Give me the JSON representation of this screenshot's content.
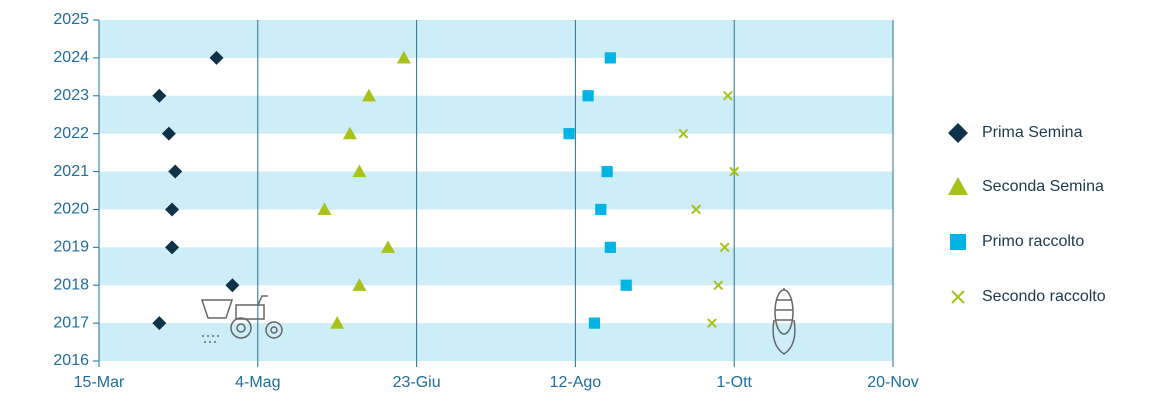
{
  "chart_data": {
    "type": "scatter",
    "xticks": [
      {
        "value": 74,
        "label": "15-Mar"
      },
      {
        "value": 124,
        "label": "4-Mag"
      },
      {
        "value": 174,
        "label": "23-Giu"
      },
      {
        "value": 224,
        "label": "12-Ago"
      },
      {
        "value": 274,
        "label": "1-Ott"
      },
      {
        "value": 324,
        "label": "20-Nov"
      }
    ],
    "xlim": [
      74,
      324
    ],
    "ylim": [
      2016,
      2025
    ],
    "yticks": [
      2016,
      2017,
      2018,
      2019,
      2020,
      2021,
      2022,
      2023,
      2024,
      2025
    ],
    "grid": true,
    "legend": "right",
    "series": [
      {
        "name": "Prima Semina",
        "color": "#0d3349",
        "marker": "diamond",
        "x": [
          111,
          93,
          96,
          98,
          97,
          97,
          116,
          93
        ],
        "values": [
          2024,
          2023,
          2022,
          2021,
          2020,
          2019,
          2018,
          2017
        ]
      },
      {
        "name": "Seconda Semina",
        "color": "#a8c21a",
        "marker": "triangle",
        "x": [
          170,
          159,
          153,
          156,
          145,
          165,
          156,
          149
        ],
        "values": [
          2024,
          2023,
          2022,
          2021,
          2020,
          2019,
          2018,
          2017
        ]
      },
      {
        "name": "Primo raccolto",
        "color": "#00b4e6",
        "marker": "square",
        "x": [
          235,
          228,
          222,
          234,
          232,
          235,
          240,
          230
        ],
        "values": [
          2024,
          2023,
          2022,
          2021,
          2020,
          2019,
          2018,
          2017
        ]
      },
      {
        "name": "Secondo raccolto",
        "color": "#a8c21a",
        "marker": "x",
        "x": [
          272,
          258,
          274,
          262,
          271,
          269,
          267
        ],
        "values": [
          2023,
          2022,
          2021,
          2020,
          2019,
          2018,
          2017
        ]
      }
    ]
  }
}
